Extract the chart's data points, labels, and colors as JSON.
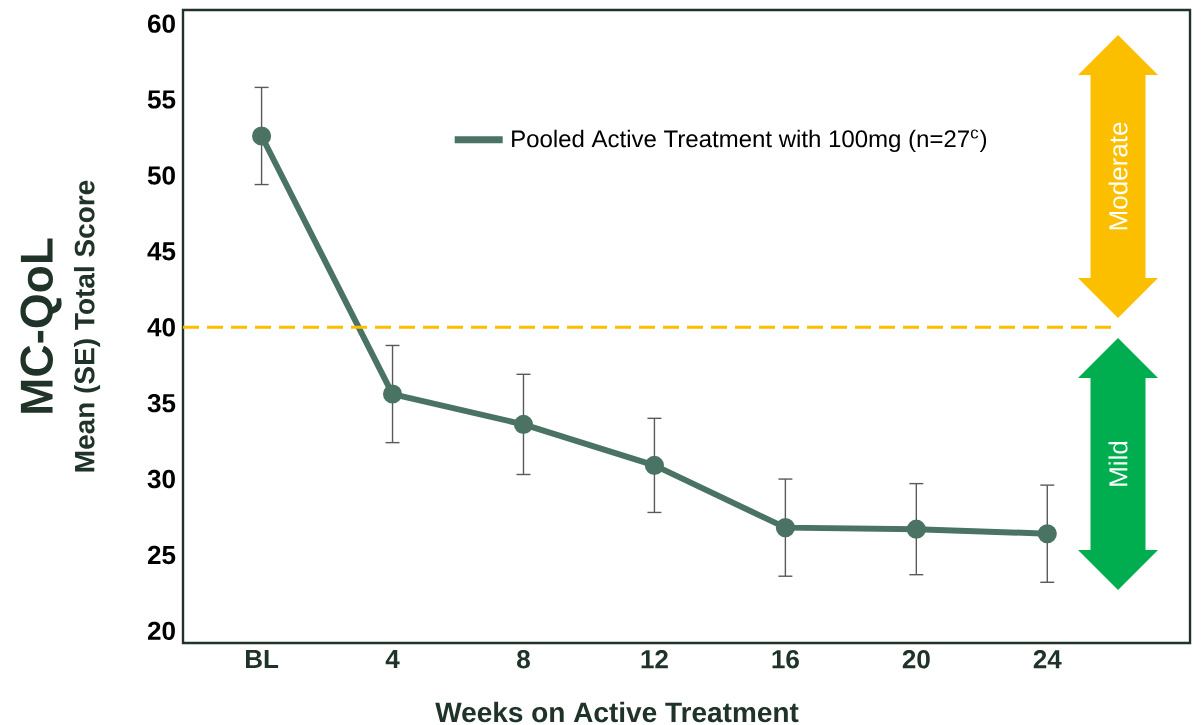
{
  "chart_data": {
    "type": "line",
    "xlabel": "Weeks on Active Treatment",
    "ylabel": "MC-QoL",
    "categories": [
      "BL",
      "4",
      "8",
      "12",
      "16",
      "20",
      "24"
    ],
    "series": [
      {
        "name": "Pooled Active Treatment with 100mg (n=27$^{c}$)",
        "color": "#4a7363",
        "values": [
          52.6,
          35.6,
          33.6,
          30.9,
          26.8,
          26.7,
          26.4
        ],
        "errors": [
          3.2,
          3.2,
          3.3,
          3.1,
          3.2,
          3.0,
          3.2
        ]
      }
    ],
    "ylim": [
      19.2,
      60.9
    ],
    "yticks": [
      20,
      25,
      30,
      35,
      40,
      45,
      50,
      55,
      60
    ],
    "ref_lines": [
      {
        "axis": "y",
        "value": 40,
        "color": "#fcbf00",
        "line_style": "dashed"
      }
    ],
    "annotations": [
      "Mean (SE) Total Score",
      "Moderate",
      "Mild"
    ],
    "legend": "top",
    "marker": "circle",
    "line_style": "solid",
    "grid": false
  }
}
